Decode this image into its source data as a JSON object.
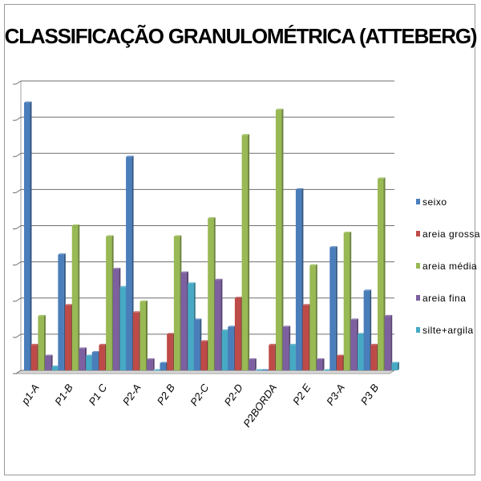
{
  "chart_data": {
    "type": "bar",
    "title": "CLASSIFICAÇÃO GRANULOMÉTRICA (ATTEBERG)",
    "xlabel": "",
    "ylabel": "",
    "ylim": [
      0,
      80
    ],
    "grid": true,
    "legend": "right",
    "categories": [
      "p1-A",
      "P1-B",
      "P1 C",
      "P2-A",
      "P2 B",
      "P2-C",
      "P2-D",
      "P2BORDA",
      "P2 E",
      "P3-A",
      "P3 B"
    ],
    "series": [
      {
        "name": "seixo",
        "color": "#4a7ebb",
        "values": [
          74,
          32,
          5,
          59,
          2,
          14,
          12,
          0,
          50,
          34,
          22
        ]
      },
      {
        "name": "areia grossa",
        "color": "#be4b48",
        "values": [
          7,
          18,
          7,
          16,
          10,
          8,
          20,
          7,
          18,
          4,
          7
        ]
      },
      {
        "name": "areia média",
        "color": "#98b954",
        "values": [
          15,
          40,
          37,
          19,
          37,
          42,
          65,
          72,
          29,
          38,
          53
        ]
      },
      {
        "name": "areia fina",
        "color": "#7d60a0",
        "values": [
          4,
          6,
          28,
          3,
          27,
          25,
          3,
          12,
          3,
          14,
          15
        ]
      },
      {
        "name": "silte+argila",
        "color": "#46aac5",
        "values": [
          1,
          4,
          23,
          0,
          24,
          11,
          0,
          7,
          0,
          10,
          2
        ]
      }
    ]
  }
}
